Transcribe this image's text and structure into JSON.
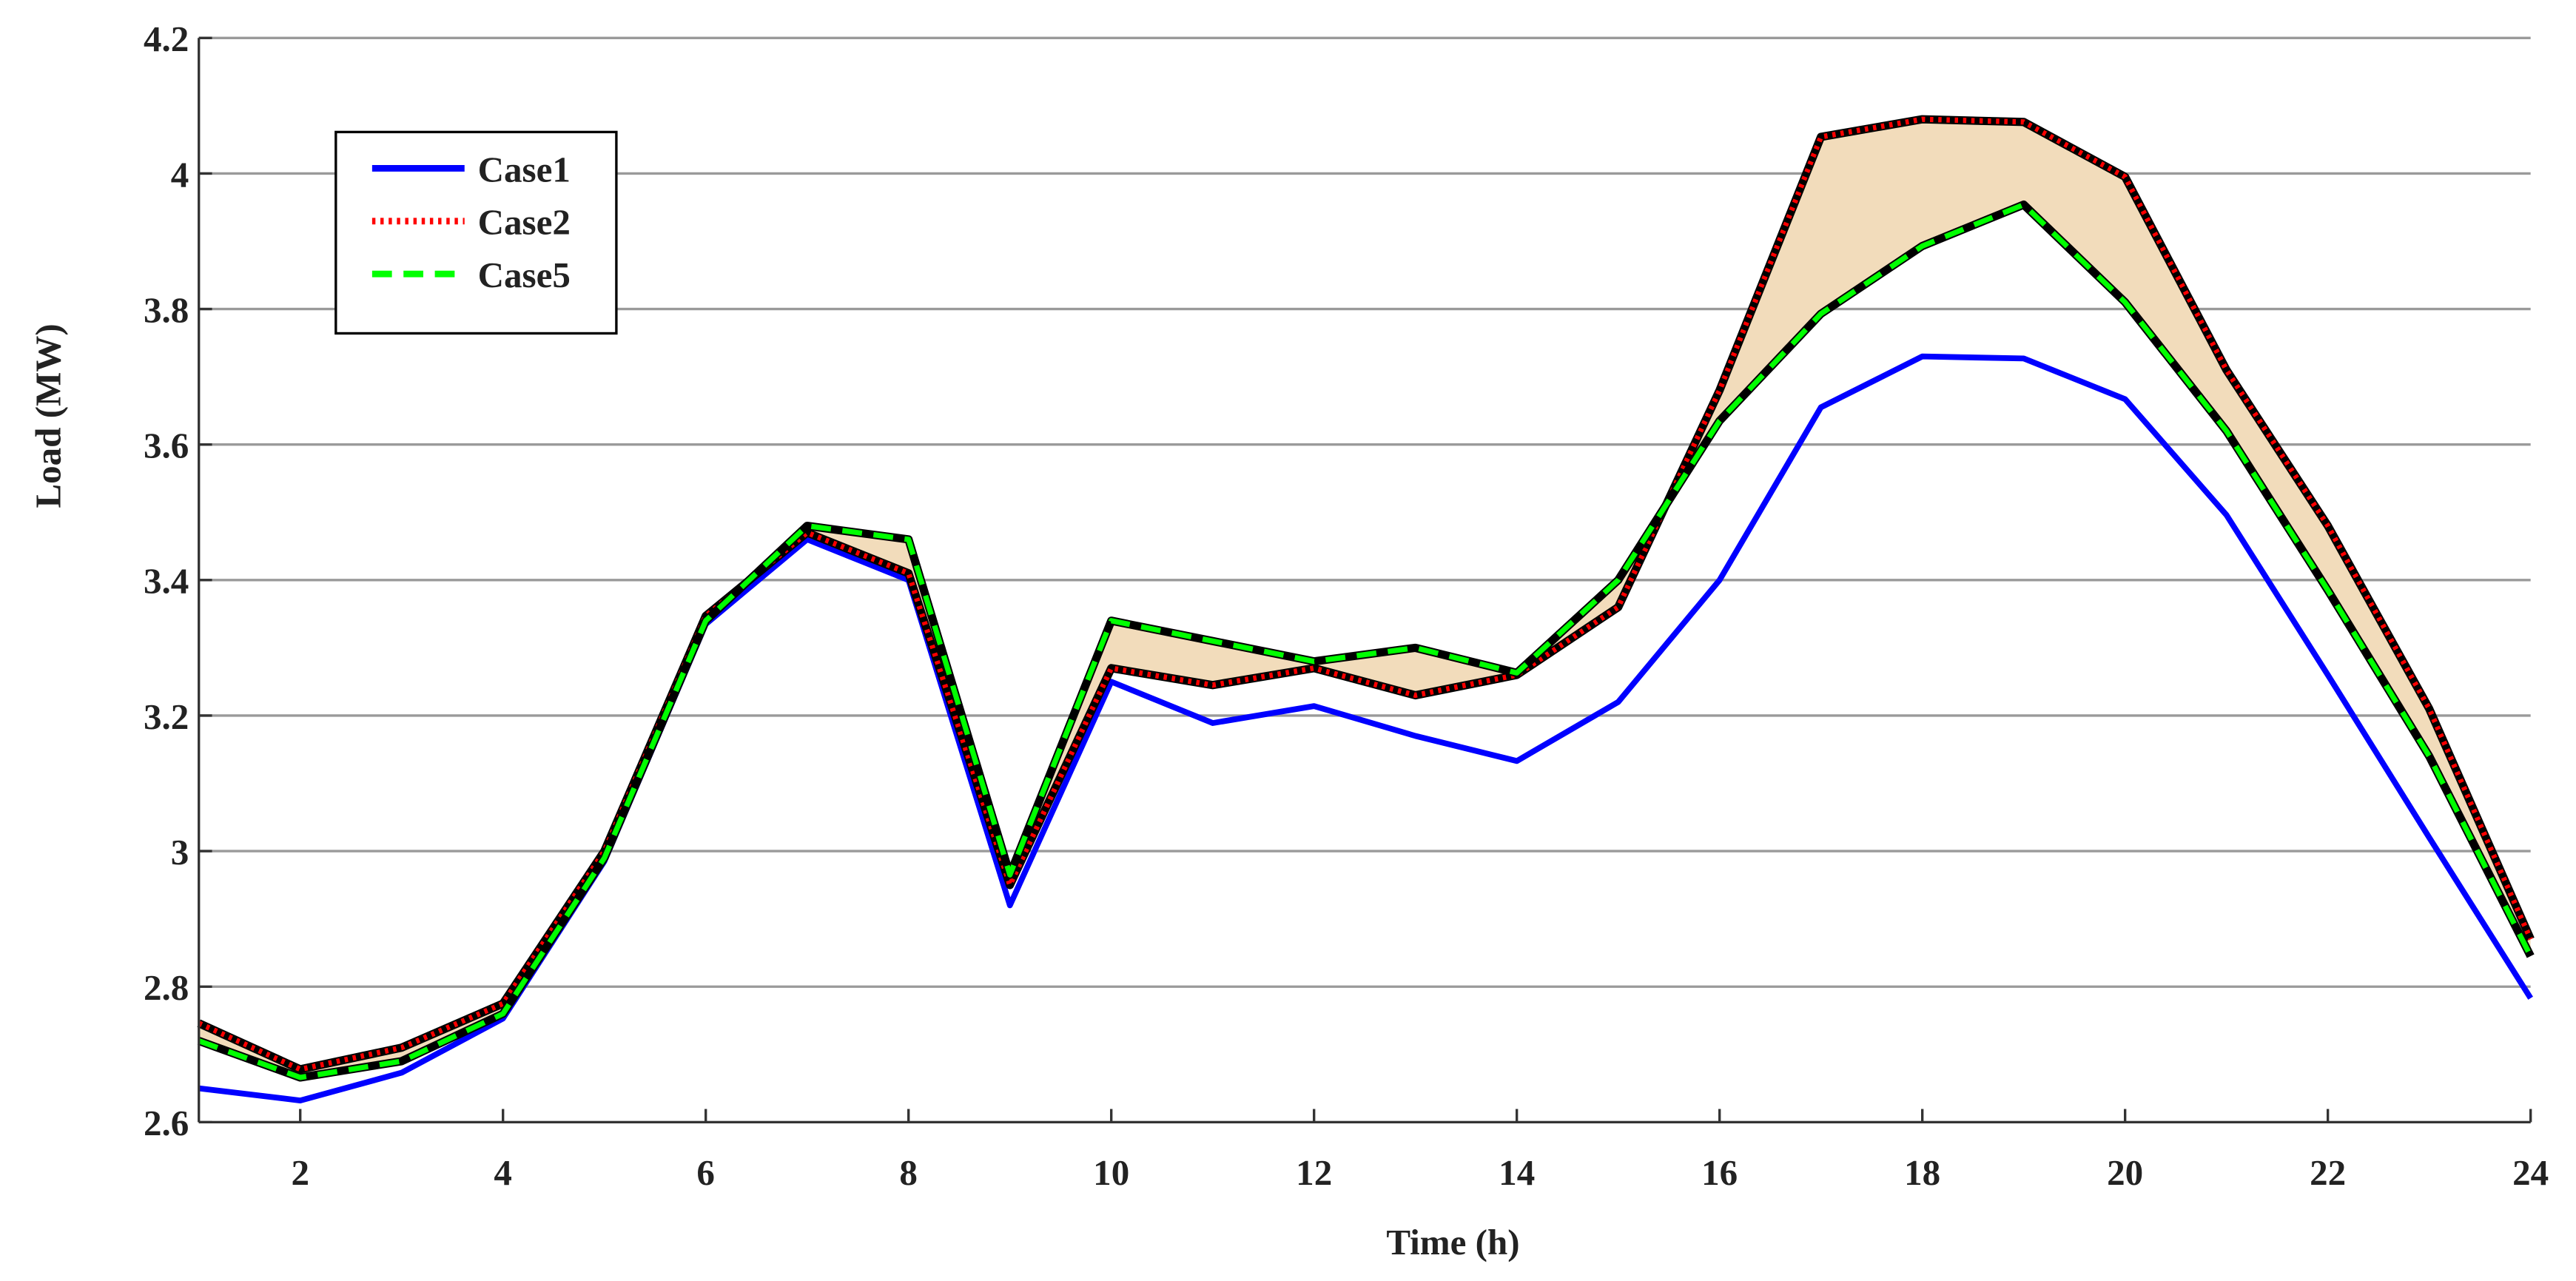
{
  "chart_data": {
    "type": "line",
    "xlabel": "Time (h)",
    "ylabel": "Load (MW)",
    "x": [
      1,
      2,
      3,
      4,
      5,
      6,
      7,
      8,
      9,
      10,
      11,
      12,
      13,
      14,
      15,
      16,
      17,
      18,
      19,
      20,
      21,
      22,
      23,
      24
    ],
    "series": [
      {
        "name": "Case1",
        "color": "#0000ff",
        "linestyle": "solid",
        "values": [
          2.65,
          2.632,
          2.673,
          2.753,
          2.985,
          3.335,
          3.46,
          3.4,
          2.92,
          3.25,
          3.189,
          3.214,
          3.17,
          3.133,
          3.22,
          3.4,
          3.655,
          3.73,
          3.727,
          3.667,
          3.496,
          3.26,
          3.02,
          2.783
        ]
      },
      {
        "name": "Case2",
        "color": "#ff0000",
        "linestyle": "dotted",
        "values": [
          2.746,
          2.678,
          2.71,
          2.775,
          3.0,
          3.347,
          3.47,
          3.41,
          2.95,
          3.27,
          3.245,
          3.27,
          3.23,
          3.26,
          3.36,
          3.68,
          4.054,
          4.08,
          4.076,
          3.995,
          3.71,
          3.48,
          3.21,
          2.87
        ]
      },
      {
        "name": "Case5",
        "color": "#00ff00",
        "linestyle": "dashed",
        "values": [
          2.72,
          2.666,
          2.69,
          2.76,
          2.99,
          3.34,
          3.48,
          3.46,
          2.965,
          3.34,
          3.31,
          3.28,
          3.3,
          3.263,
          3.4,
          3.635,
          3.793,
          3.893,
          3.954,
          3.81,
          3.62,
          3.385,
          3.14,
          2.845
        ]
      }
    ],
    "fill_between": {
      "series": [
        1,
        2
      ],
      "color": "#f2dcbb"
    },
    "xlim": [
      1,
      24
    ],
    "xticks": [
      2,
      4,
      6,
      8,
      10,
      12,
      14,
      16,
      18,
      20,
      22,
      24
    ],
    "ylim": [
      2.6,
      4.2
    ],
    "yticks": [
      2.6,
      2.8,
      3,
      3.2,
      3.4,
      3.6,
      3.8,
      4,
      4.2
    ],
    "grid": true,
    "legend": "upper left"
  }
}
